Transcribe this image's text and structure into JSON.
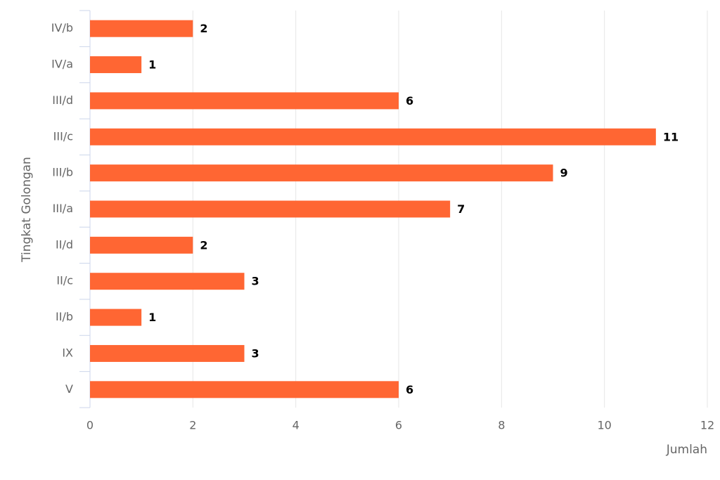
{
  "chart_data": {
    "type": "bar",
    "orientation": "horizontal",
    "x_label": "Jumlah",
    "y_label": "Tingkat Golongan",
    "categories": [
      "IV/b",
      "IV/a",
      "III/d",
      "III/c",
      "III/b",
      "III/a",
      "II/d",
      "II/c",
      "II/b",
      "IX",
      "V"
    ],
    "values": [
      2,
      1,
      6,
      11,
      9,
      7,
      2,
      3,
      1,
      3,
      6
    ],
    "color": "#ff6633",
    "xlim": [
      0,
      12
    ],
    "xticks": [
      0,
      2,
      4,
      6,
      8,
      10,
      12
    ],
    "grid": true
  }
}
